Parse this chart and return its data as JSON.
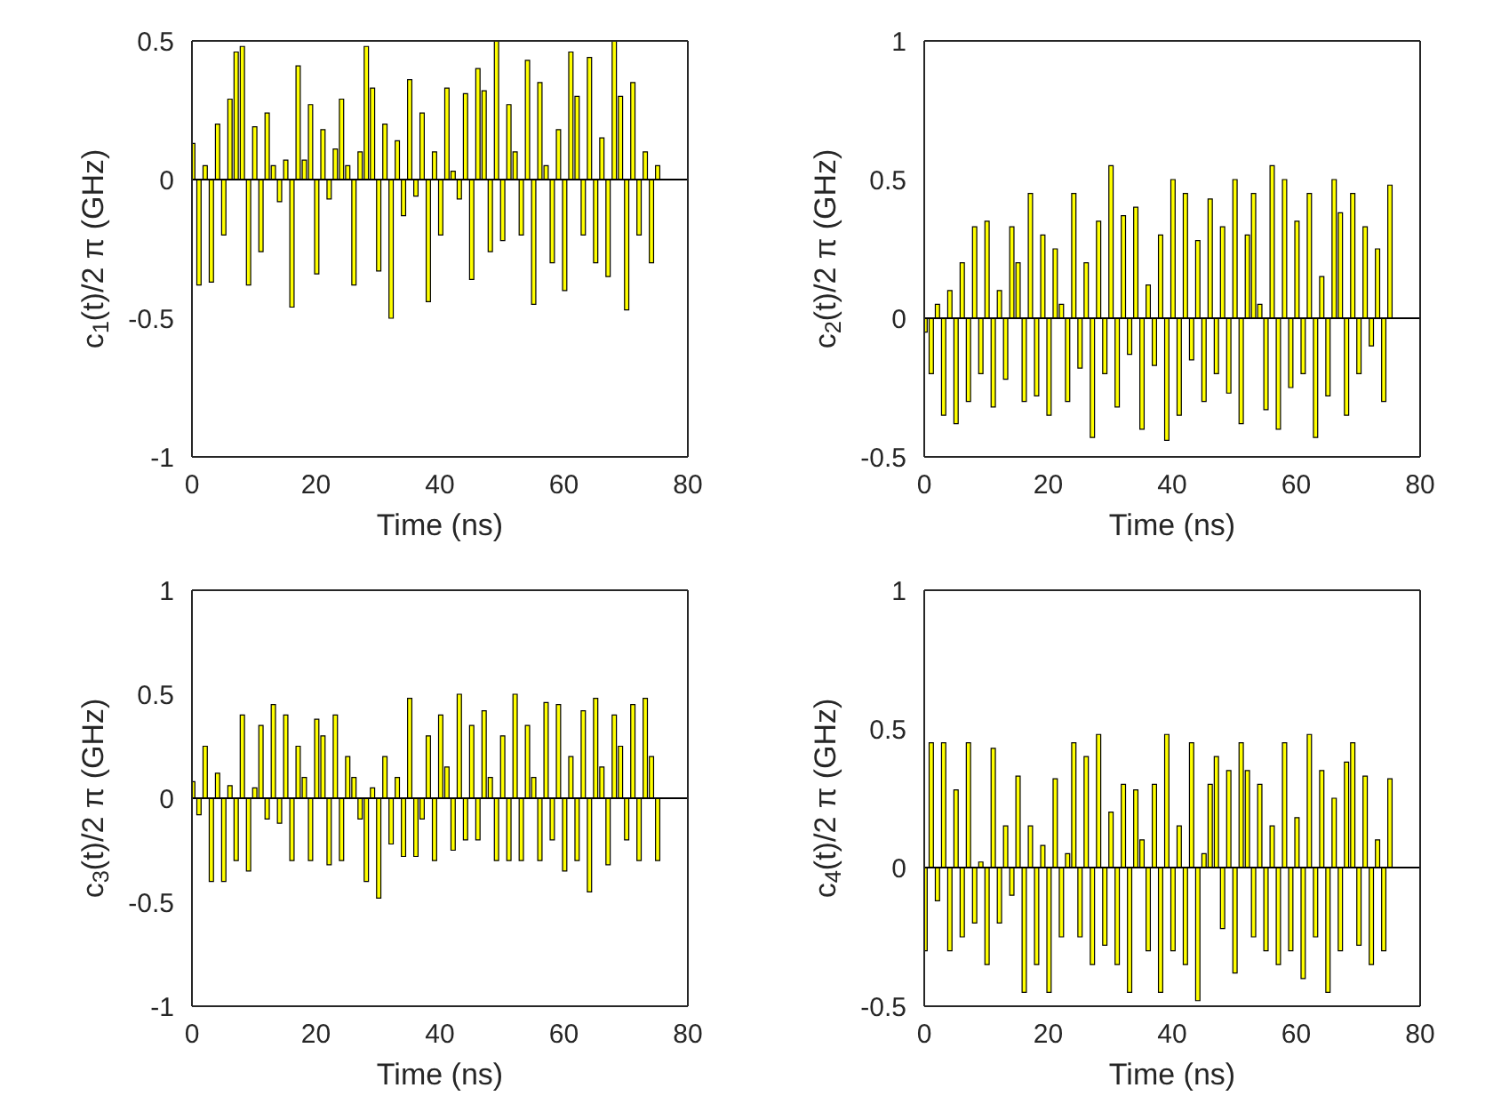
{
  "chart_data": [
    {
      "type": "bar",
      "xlabel": "Time (ns)",
      "ylabel": "c$_{1}$(t)/2 π (GHz)",
      "color": "#ffff00",
      "xlim": [
        0,
        80
      ],
      "xticks": [
        0,
        20,
        40,
        60,
        80
      ],
      "ylim": [
        -1,
        0.5
      ],
      "yticks": [
        -1,
        -0.5,
        0,
        0.5
      ],
      "x": [
        0,
        1,
        2,
        3,
        4,
        5,
        6,
        7,
        8,
        9,
        10,
        11,
        12,
        13,
        14,
        15,
        16,
        17,
        18,
        19,
        20,
        21,
        22,
        23,
        24,
        25,
        26,
        27,
        28,
        29,
        30,
        31,
        32,
        33,
        34,
        35,
        36,
        37,
        38,
        39,
        40,
        41,
        42,
        43,
        44,
        45,
        46,
        47,
        48,
        49,
        50,
        51,
        52,
        53,
        54,
        55,
        56,
        57,
        58,
        59,
        60,
        61,
        62,
        63,
        64,
        65,
        66,
        67,
        68,
        69,
        70,
        71,
        72,
        73,
        74,
        75
      ],
      "values": [
        0.13,
        -0.38,
        0.05,
        -0.37,
        0.2,
        -0.2,
        0.29,
        0.46,
        0.48,
        -0.38,
        0.19,
        -0.26,
        0.24,
        0.05,
        -0.08,
        0.07,
        -0.46,
        0.41,
        0.07,
        0.27,
        -0.34,
        0.18,
        -0.07,
        0.11,
        0.29,
        0.05,
        -0.38,
        0.1,
        0.48,
        0.33,
        -0.33,
        0.2,
        -0.5,
        0.14,
        -0.13,
        0.36,
        -0.06,
        0.24,
        -0.44,
        0.1,
        -0.2,
        0.33,
        0.03,
        -0.07,
        0.31,
        -0.36,
        0.4,
        0.32,
        -0.26,
        0.5,
        -0.22,
        0.27,
        0.1,
        -0.2,
        0.43,
        -0.45,
        0.35,
        0.05,
        -0.3,
        0.18,
        -0.4,
        0.46,
        0.3,
        -0.2,
        0.44,
        -0.3,
        0.15,
        -0.35,
        0.5,
        0.3,
        -0.47,
        0.35,
        -0.2,
        0.1,
        -0.3,
        0.05
      ]
    },
    {
      "type": "bar",
      "xlabel": "Time (ns)",
      "ylabel": "c$_{2}$(t)/2 π (GHz)",
      "color": "#ffff00",
      "xlim": [
        0,
        80
      ],
      "xticks": [
        0,
        20,
        40,
        60,
        80
      ],
      "ylim": [
        -0.5,
        1
      ],
      "yticks": [
        -0.5,
        0,
        0.5,
        1
      ],
      "x": [
        0,
        1,
        2,
        3,
        4,
        5,
        6,
        7,
        8,
        9,
        10,
        11,
        12,
        13,
        14,
        15,
        16,
        17,
        18,
        19,
        20,
        21,
        22,
        23,
        24,
        25,
        26,
        27,
        28,
        29,
        30,
        31,
        32,
        33,
        34,
        35,
        36,
        37,
        38,
        39,
        40,
        41,
        42,
        43,
        44,
        45,
        46,
        47,
        48,
        49,
        50,
        51,
        52,
        53,
        54,
        55,
        56,
        57,
        58,
        59,
        60,
        61,
        62,
        63,
        64,
        65,
        66,
        67,
        68,
        69,
        70,
        71,
        72,
        73,
        74,
        75
      ],
      "values": [
        -0.05,
        -0.2,
        0.05,
        -0.35,
        0.1,
        -0.38,
        0.2,
        -0.3,
        0.33,
        -0.2,
        0.35,
        -0.32,
        0.1,
        -0.22,
        0.33,
        0.2,
        -0.3,
        0.45,
        -0.28,
        0.3,
        -0.35,
        0.25,
        0.05,
        -0.3,
        0.45,
        -0.18,
        0.2,
        -0.43,
        0.35,
        -0.2,
        0.55,
        -0.32,
        0.37,
        -0.13,
        0.4,
        -0.4,
        0.12,
        -0.17,
        0.3,
        -0.44,
        0.5,
        -0.35,
        0.45,
        -0.15,
        0.28,
        -0.3,
        0.43,
        -0.2,
        0.33,
        -0.27,
        0.5,
        -0.38,
        0.3,
        0.45,
        0.05,
        -0.33,
        0.55,
        -0.4,
        0.5,
        -0.25,
        0.35,
        -0.2,
        0.45,
        -0.43,
        0.15,
        -0.28,
        0.5,
        0.38,
        -0.35,
        0.45,
        -0.2,
        0.33,
        -0.1,
        0.25,
        -0.3,
        0.48
      ]
    },
    {
      "type": "bar",
      "xlabel": "Time (ns)",
      "ylabel": "c$_{3}$(t)/2 π (GHz)",
      "color": "#ffff00",
      "xlim": [
        0,
        80
      ],
      "xticks": [
        0,
        20,
        40,
        60,
        80
      ],
      "ylim": [
        -1,
        1
      ],
      "yticks": [
        -1,
        -0.5,
        0,
        0.5,
        1
      ],
      "x": [
        0,
        1,
        2,
        3,
        4,
        5,
        6,
        7,
        8,
        9,
        10,
        11,
        12,
        13,
        14,
        15,
        16,
        17,
        18,
        19,
        20,
        21,
        22,
        23,
        24,
        25,
        26,
        27,
        28,
        29,
        30,
        31,
        32,
        33,
        34,
        35,
        36,
        37,
        38,
        39,
        40,
        41,
        42,
        43,
        44,
        45,
        46,
        47,
        48,
        49,
        50,
        51,
        52,
        53,
        54,
        55,
        56,
        57,
        58,
        59,
        60,
        61,
        62,
        63,
        64,
        65,
        66,
        67,
        68,
        69,
        70,
        71,
        72,
        73,
        74,
        75
      ],
      "values": [
        0.08,
        -0.08,
        0.25,
        -0.4,
        0.12,
        -0.4,
        0.06,
        -0.3,
        0.4,
        -0.35,
        0.05,
        0.35,
        -0.1,
        0.45,
        -0.12,
        0.4,
        -0.3,
        0.25,
        0.1,
        -0.3,
        0.38,
        0.3,
        -0.32,
        0.4,
        -0.3,
        0.2,
        0.1,
        -0.1,
        -0.4,
        0.05,
        -0.48,
        0.2,
        -0.22,
        0.1,
        -0.28,
        0.48,
        -0.28,
        -0.1,
        0.3,
        -0.3,
        0.4,
        0.15,
        -0.25,
        0.5,
        -0.2,
        0.35,
        -0.2,
        0.42,
        0.1,
        -0.3,
        0.3,
        -0.3,
        0.5,
        -0.3,
        0.35,
        0.1,
        -0.3,
        0.46,
        -0.2,
        0.45,
        -0.35,
        0.2,
        -0.3,
        0.42,
        -0.45,
        0.48,
        0.15,
        -0.32,
        0.4,
        0.25,
        -0.2,
        0.45,
        -0.3,
        0.48,
        0.2,
        -0.3
      ]
    },
    {
      "type": "bar",
      "xlabel": "Time (ns)",
      "ylabel": "c$_{4}$(t)/2 π (GHz)",
      "color": "#ffff00",
      "xlim": [
        0,
        80
      ],
      "xticks": [
        0,
        20,
        40,
        60,
        80
      ],
      "ylim": [
        -0.5,
        1
      ],
      "yticks": [
        -0.5,
        0,
        0.5,
        1
      ],
      "x": [
        0,
        1,
        2,
        3,
        4,
        5,
        6,
        7,
        8,
        9,
        10,
        11,
        12,
        13,
        14,
        15,
        16,
        17,
        18,
        19,
        20,
        21,
        22,
        23,
        24,
        25,
        26,
        27,
        28,
        29,
        30,
        31,
        32,
        33,
        34,
        35,
        36,
        37,
        38,
        39,
        40,
        41,
        42,
        43,
        44,
        45,
        46,
        47,
        48,
        49,
        50,
        51,
        52,
        53,
        54,
        55,
        56,
        57,
        58,
        59,
        60,
        61,
        62,
        63,
        64,
        65,
        66,
        67,
        68,
        69,
        70,
        71,
        72,
        73,
        74,
        75
      ],
      "values": [
        -0.3,
        0.45,
        -0.12,
        0.45,
        -0.3,
        0.28,
        -0.25,
        0.45,
        -0.2,
        0.02,
        -0.35,
        0.43,
        -0.2,
        0.15,
        -0.1,
        0.33,
        -0.45,
        0.15,
        -0.35,
        0.08,
        -0.45,
        0.32,
        -0.25,
        0.05,
        0.45,
        -0.25,
        0.4,
        -0.35,
        0.48,
        -0.28,
        0.2,
        -0.35,
        0.3,
        -0.45,
        0.28,
        0.1,
        -0.3,
        0.3,
        -0.45,
        0.48,
        -0.3,
        0.15,
        -0.35,
        0.45,
        -0.48,
        0.05,
        0.3,
        0.4,
        -0.22,
        0.35,
        -0.38,
        0.45,
        0.35,
        -0.25,
        0.3,
        -0.3,
        0.15,
        -0.35,
        0.45,
        -0.3,
        0.18,
        -0.4,
        0.48,
        -0.25,
        0.35,
        -0.45,
        0.25,
        -0.3,
        0.38,
        0.45,
        -0.28,
        0.33,
        -0.35,
        0.1,
        -0.3,
        0.32
      ]
    }
  ]
}
